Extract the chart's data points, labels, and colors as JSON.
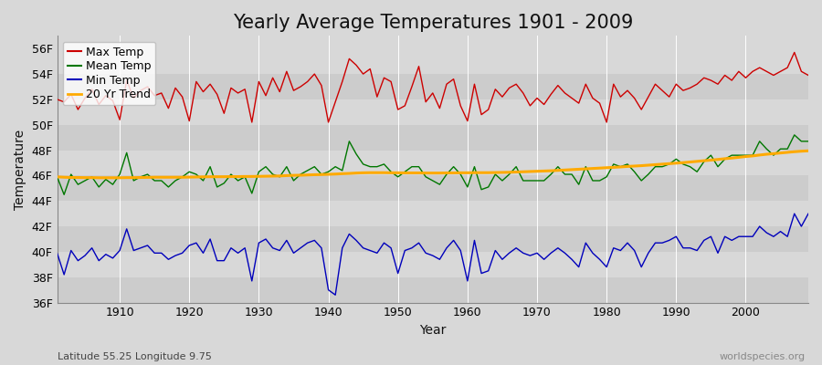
{
  "title": "Yearly Average Temperatures 1901 - 2009",
  "xlabel": "Year",
  "ylabel": "Temperature",
  "subtitle_lat": "Latitude 55.25 Longitude 9.75",
  "watermark": "worldspecies.org",
  "years": [
    1901,
    1902,
    1903,
    1904,
    1905,
    1906,
    1907,
    1908,
    1909,
    1910,
    1911,
    1912,
    1913,
    1914,
    1915,
    1916,
    1917,
    1918,
    1919,
    1920,
    1921,
    1922,
    1923,
    1924,
    1925,
    1926,
    1927,
    1928,
    1929,
    1930,
    1931,
    1932,
    1933,
    1934,
    1935,
    1936,
    1937,
    1938,
    1939,
    1940,
    1941,
    1942,
    1943,
    1944,
    1945,
    1946,
    1947,
    1948,
    1949,
    1950,
    1951,
    1952,
    1953,
    1954,
    1955,
    1956,
    1957,
    1958,
    1959,
    1960,
    1961,
    1962,
    1963,
    1964,
    1965,
    1966,
    1967,
    1968,
    1969,
    1970,
    1971,
    1972,
    1973,
    1974,
    1975,
    1976,
    1977,
    1978,
    1979,
    1980,
    1981,
    1982,
    1983,
    1984,
    1985,
    1986,
    1987,
    1988,
    1989,
    1990,
    1991,
    1992,
    1993,
    1994,
    1995,
    1996,
    1997,
    1998,
    1999,
    2000,
    2001,
    2002,
    2003,
    2004,
    2005,
    2006,
    2007,
    2008,
    2009
  ],
  "max_temp": [
    52.0,
    51.8,
    52.4,
    51.2,
    52.1,
    52.8,
    51.6,
    52.3,
    51.9,
    50.4,
    53.5,
    52.1,
    52.7,
    53.0,
    52.3,
    52.5,
    51.3,
    52.9,
    52.2,
    50.3,
    53.4,
    52.6,
    53.2,
    52.4,
    50.9,
    52.9,
    52.5,
    52.8,
    50.2,
    53.4,
    52.3,
    53.7,
    52.6,
    54.2,
    52.7,
    53.0,
    53.4,
    54.0,
    53.1,
    50.2,
    51.8,
    53.4,
    55.2,
    54.7,
    54.0,
    54.4,
    52.2,
    53.7,
    53.4,
    51.2,
    51.5,
    53.0,
    54.6,
    51.8,
    52.5,
    51.3,
    53.2,
    53.6,
    51.5,
    50.3,
    53.2,
    50.8,
    51.2,
    52.8,
    52.2,
    52.9,
    53.2,
    52.5,
    51.5,
    52.1,
    51.6,
    52.4,
    53.1,
    52.5,
    52.1,
    51.7,
    53.2,
    52.1,
    51.7,
    50.2,
    53.2,
    52.2,
    52.7,
    52.1,
    51.2,
    52.2,
    53.2,
    52.7,
    52.2,
    53.2,
    52.7,
    52.9,
    53.2,
    53.7,
    53.5,
    53.2,
    53.9,
    53.5,
    54.2,
    53.7,
    54.2,
    54.5,
    54.2,
    53.9,
    54.2,
    54.5,
    55.7,
    54.2,
    53.9
  ],
  "mean_temp": [
    45.9,
    44.5,
    46.1,
    45.3,
    45.6,
    45.9,
    45.1,
    45.7,
    45.3,
    46.1,
    47.8,
    45.6,
    45.9,
    46.1,
    45.6,
    45.6,
    45.1,
    45.6,
    45.9,
    46.3,
    46.1,
    45.6,
    46.7,
    45.1,
    45.4,
    46.1,
    45.6,
    45.9,
    44.6,
    46.3,
    46.7,
    46.1,
    45.9,
    46.7,
    45.6,
    46.1,
    46.4,
    46.7,
    46.1,
    46.3,
    46.7,
    46.4,
    48.7,
    47.7,
    46.9,
    46.7,
    46.7,
    46.9,
    46.3,
    45.9,
    46.3,
    46.7,
    46.7,
    45.9,
    45.6,
    45.3,
    46.1,
    46.7,
    46.1,
    45.1,
    46.7,
    44.9,
    45.1,
    46.1,
    45.6,
    46.1,
    46.7,
    45.6,
    45.6,
    45.6,
    45.6,
    46.1,
    46.7,
    46.1,
    46.1,
    45.3,
    46.7,
    45.6,
    45.6,
    45.9,
    46.9,
    46.7,
    46.9,
    46.3,
    45.6,
    46.1,
    46.7,
    46.7,
    46.9,
    47.3,
    46.9,
    46.7,
    46.3,
    47.1,
    47.6,
    46.7,
    47.3,
    47.6,
    47.6,
    47.6,
    47.6,
    48.7,
    48.1,
    47.6,
    48.1,
    48.1,
    49.2,
    48.7,
    48.7
  ],
  "min_temp": [
    39.9,
    38.2,
    40.1,
    39.3,
    39.7,
    40.3,
    39.3,
    39.8,
    39.5,
    40.1,
    41.8,
    40.1,
    40.3,
    40.5,
    39.9,
    39.9,
    39.4,
    39.7,
    39.9,
    40.5,
    40.7,
    39.9,
    41.0,
    39.3,
    39.3,
    40.3,
    39.9,
    40.3,
    37.7,
    40.7,
    41.0,
    40.3,
    40.1,
    40.9,
    39.9,
    40.3,
    40.7,
    40.9,
    40.3,
    37.0,
    36.6,
    40.3,
    41.4,
    40.9,
    40.3,
    40.1,
    39.9,
    40.7,
    40.3,
    38.3,
    40.1,
    40.3,
    40.7,
    39.9,
    39.7,
    39.4,
    40.3,
    40.9,
    40.1,
    37.7,
    40.9,
    38.3,
    38.5,
    40.1,
    39.4,
    39.9,
    40.3,
    39.9,
    39.7,
    39.9,
    39.4,
    39.9,
    40.3,
    39.9,
    39.4,
    38.8,
    40.7,
    39.9,
    39.4,
    38.8,
    40.3,
    40.1,
    40.7,
    40.1,
    38.8,
    39.9,
    40.7,
    40.7,
    40.9,
    41.2,
    40.3,
    40.3,
    40.1,
    40.9,
    41.2,
    39.9,
    41.2,
    40.9,
    41.2,
    41.2,
    41.2,
    42.0,
    41.5,
    41.2,
    41.6,
    41.2,
    43.0,
    42.0,
    43.0
  ],
  "trend_temp": [
    45.9,
    45.87,
    45.85,
    45.85,
    45.84,
    45.84,
    45.83,
    45.83,
    45.83,
    45.83,
    45.84,
    45.84,
    45.85,
    45.86,
    45.87,
    45.87,
    45.87,
    45.87,
    45.87,
    45.88,
    45.89,
    45.9,
    45.91,
    45.91,
    45.91,
    45.92,
    45.92,
    45.93,
    45.93,
    45.94,
    45.95,
    45.96,
    45.97,
    46.0,
    46.02,
    46.03,
    46.05,
    46.07,
    46.08,
    46.1,
    46.12,
    46.15,
    46.17,
    46.2,
    46.22,
    46.23,
    46.23,
    46.23,
    46.22,
    46.22,
    46.21,
    46.21,
    46.21,
    46.2,
    46.2,
    46.2,
    46.21,
    46.21,
    46.22,
    46.22,
    46.23,
    46.23,
    46.23,
    46.24,
    46.25,
    46.26,
    46.28,
    46.3,
    46.32,
    46.34,
    46.36,
    46.38,
    46.41,
    46.44,
    46.47,
    46.5,
    46.53,
    46.56,
    46.59,
    46.62,
    46.65,
    46.68,
    46.72,
    46.75,
    46.78,
    46.82,
    46.86,
    46.9,
    46.94,
    46.98,
    47.02,
    47.07,
    47.12,
    47.17,
    47.22,
    47.27,
    47.33,
    47.38,
    47.44,
    47.5,
    47.55,
    47.62,
    47.68,
    47.73,
    47.78,
    47.83,
    47.88,
    47.92,
    47.95
  ],
  "max_color": "#cc0000",
  "mean_color": "#007700",
  "min_color": "#0000bb",
  "trend_color": "#ffaa00",
  "fig_bg_color": "#d8d8d8",
  "plot_bg_color": "#d8d8d8",
  "band_colors": [
    "#cccccc",
    "#d8d8d8"
  ],
  "grid_color": "#ffffff",
  "ylim": [
    36,
    57
  ],
  "yticks": [
    36,
    38,
    40,
    42,
    44,
    46,
    48,
    50,
    52,
    54,
    56
  ],
  "ytick_labels": [
    "36F",
    "38F",
    "40F",
    "42F",
    "44F",
    "46F",
    "48F",
    "50F",
    "52F",
    "54F",
    "56F"
  ],
  "xlim_start": 1901,
  "xlim_end": 2009,
  "xticks": [
    1910,
    1920,
    1930,
    1940,
    1950,
    1960,
    1970,
    1980,
    1990,
    2000
  ],
  "title_fontsize": 15,
  "axis_label_fontsize": 10,
  "tick_fontsize": 9,
  "legend_fontsize": 9
}
